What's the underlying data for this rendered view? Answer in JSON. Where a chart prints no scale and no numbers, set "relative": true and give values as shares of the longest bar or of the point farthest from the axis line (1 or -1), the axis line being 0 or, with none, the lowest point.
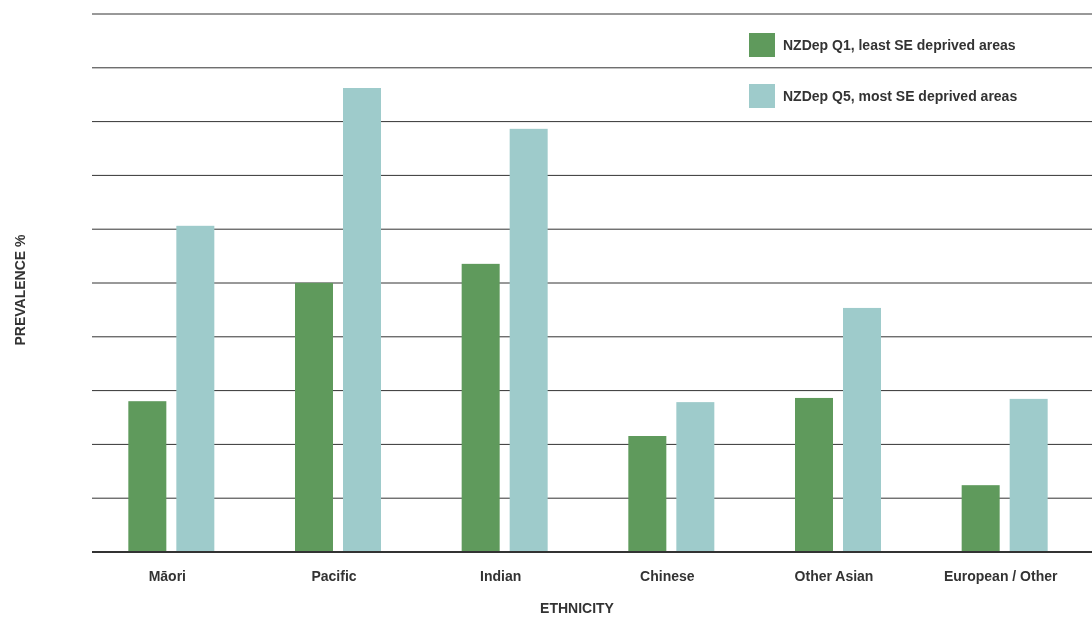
{
  "chart_data": {
    "type": "bar",
    "relative": true,
    "xlabel": "ETHNICITY",
    "ylabel": "PREVALENCE %",
    "categories": [
      "Māori",
      "Pacific",
      "Indian",
      "Chinese",
      "Other Asian",
      "European / Other"
    ],
    "series": [
      {
        "name": "NZDep Q1, least SE deprived areas",
        "color": "#5f9a5c",
        "values": [
          0.325,
          0.58,
          0.621,
          0.25,
          0.332,
          0.144
        ]
      },
      {
        "name": "NZDep Q5, most SE deprived areas",
        "color": "#9ecbcb",
        "values": [
          0.703,
          1,
          0.912,
          0.323,
          0.526,
          0.33
        ]
      }
    ],
    "grid": "y",
    "legend": "top right"
  }
}
